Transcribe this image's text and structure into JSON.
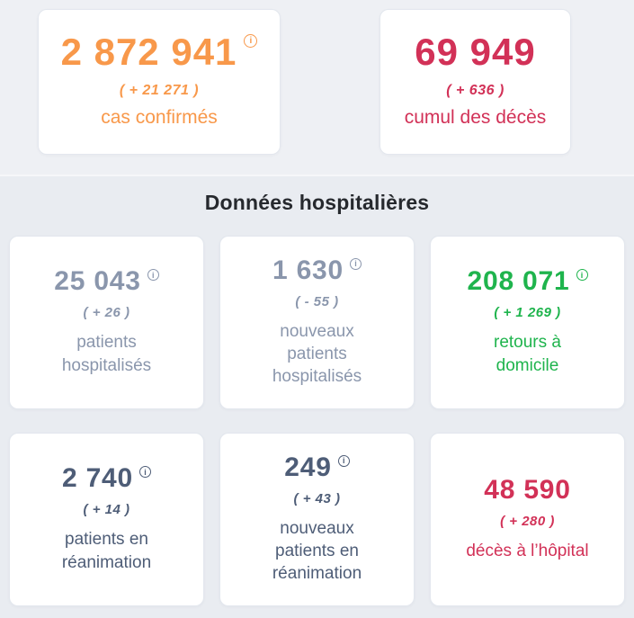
{
  "theme": {
    "bg_top": "#eef0f4",
    "bg_bottom": "#e9ecf1",
    "card_bg": "#ffffff",
    "card_border": "#e3e7ee",
    "title_color": "#26292e",
    "accent_orange": "#f8984a",
    "accent_crimson": "#d23157",
    "accent_green": "#1fb44d",
    "accent_slate_light": "#8a96ac",
    "accent_slate_dark": "#4e5d77"
  },
  "icons": {
    "info": "i"
  },
  "sections": {
    "summary": {
      "cards": [
        {
          "name": "cas-confirmes",
          "value": "2 872 941",
          "delta": "( + 21 271 )",
          "label": "cas confirmés",
          "color": "#f8984a"
        },
        {
          "name": "cumul-deces",
          "value": "69 949",
          "delta": "( + 636 )",
          "label": "cumul des décès",
          "color": "#d23157"
        }
      ]
    },
    "hospital": {
      "title": "Données hospitalières",
      "cards": [
        {
          "name": "patients-hospitalises",
          "value": "25 043",
          "delta": "( + 26 )",
          "label": "patients\nhospitalisés",
          "color": "#8a96ac"
        },
        {
          "name": "nouveaux-patients-hospitalises",
          "value": "1 630",
          "delta": "( - 55 )",
          "label": "nouveaux\npatients\nhospitalisés",
          "color": "#8a96ac"
        },
        {
          "name": "retours-a-domicile",
          "value": "208 071",
          "delta": "( + 1 269 )",
          "label": "retours à\ndomicile",
          "color": "#1fb44d"
        },
        {
          "name": "patients-en-reanimation",
          "value": "2 740",
          "delta": "( + 14 )",
          "label": "patients en\nréanimation",
          "color": "#4e5d77"
        },
        {
          "name": "nouveaux-patients-en-reanimation",
          "value": "249",
          "delta": "( + 43 )",
          "label": "nouveaux\npatients en\nréanimation",
          "color": "#4e5d77"
        },
        {
          "name": "deces-a-hopital",
          "value": "48 590",
          "delta": "( + 280 )",
          "label": "décès à l’hôpital",
          "color": "#d23157"
        }
      ]
    }
  }
}
